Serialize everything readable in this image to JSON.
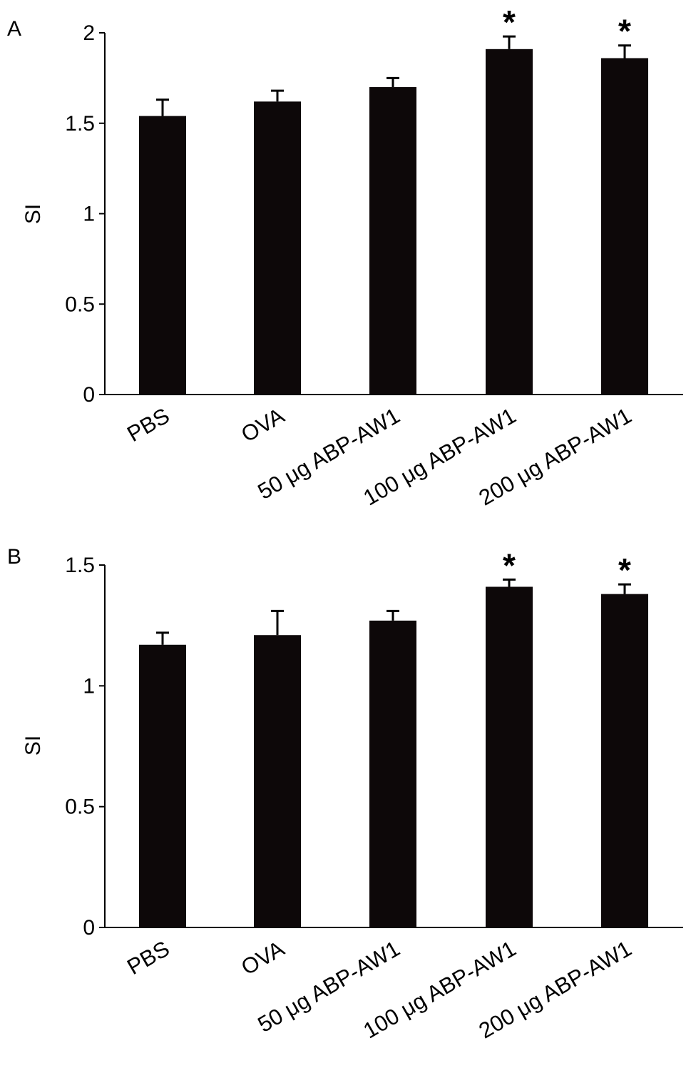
{
  "figure_panels": [
    "A",
    "B"
  ],
  "chart_data": [
    {
      "panel": "A",
      "type": "bar",
      "categories": [
        "PBS",
        "OVA",
        "50 μg ABP-AW1",
        "100 μg ABP-AW1",
        "200 μg ABP-AW1"
      ],
      "values": [
        1.54,
        1.62,
        1.7,
        1.91,
        1.86
      ],
      "error_plus": [
        0.09,
        0.06,
        0.05,
        0.07,
        0.07
      ],
      "significance": [
        "",
        "",
        "",
        "*",
        "*"
      ],
      "ylabel": "SI",
      "xlabel": "",
      "ylim": [
        0,
        2
      ],
      "yticks": [
        0,
        0.5,
        1,
        1.5,
        2
      ],
      "ytick_labels": [
        "0",
        "0.5",
        "1",
        "1.5",
        "2"
      ],
      "bar_color": "#0d0809",
      "grid": false,
      "legend": "none"
    },
    {
      "panel": "B",
      "type": "bar",
      "categories": [
        "PBS",
        "OVA",
        "50 μg ABP-AW1",
        "100 μg ABP-AW1",
        "200 μg ABP-AW1"
      ],
      "values": [
        1.17,
        1.21,
        1.27,
        1.41,
        1.38
      ],
      "error_plus": [
        0.05,
        0.1,
        0.04,
        0.03,
        0.04
      ],
      "significance": [
        "",
        "",
        "",
        "*",
        "*"
      ],
      "ylabel": "SI",
      "xlabel": "",
      "ylim": [
        0,
        1.5
      ],
      "yticks": [
        0,
        0.5,
        1,
        1.5
      ],
      "ytick_labels": [
        "0",
        "0.5",
        "1",
        "1.5"
      ],
      "bar_color": "#0d0809",
      "grid": false,
      "legend": "none"
    }
  ]
}
